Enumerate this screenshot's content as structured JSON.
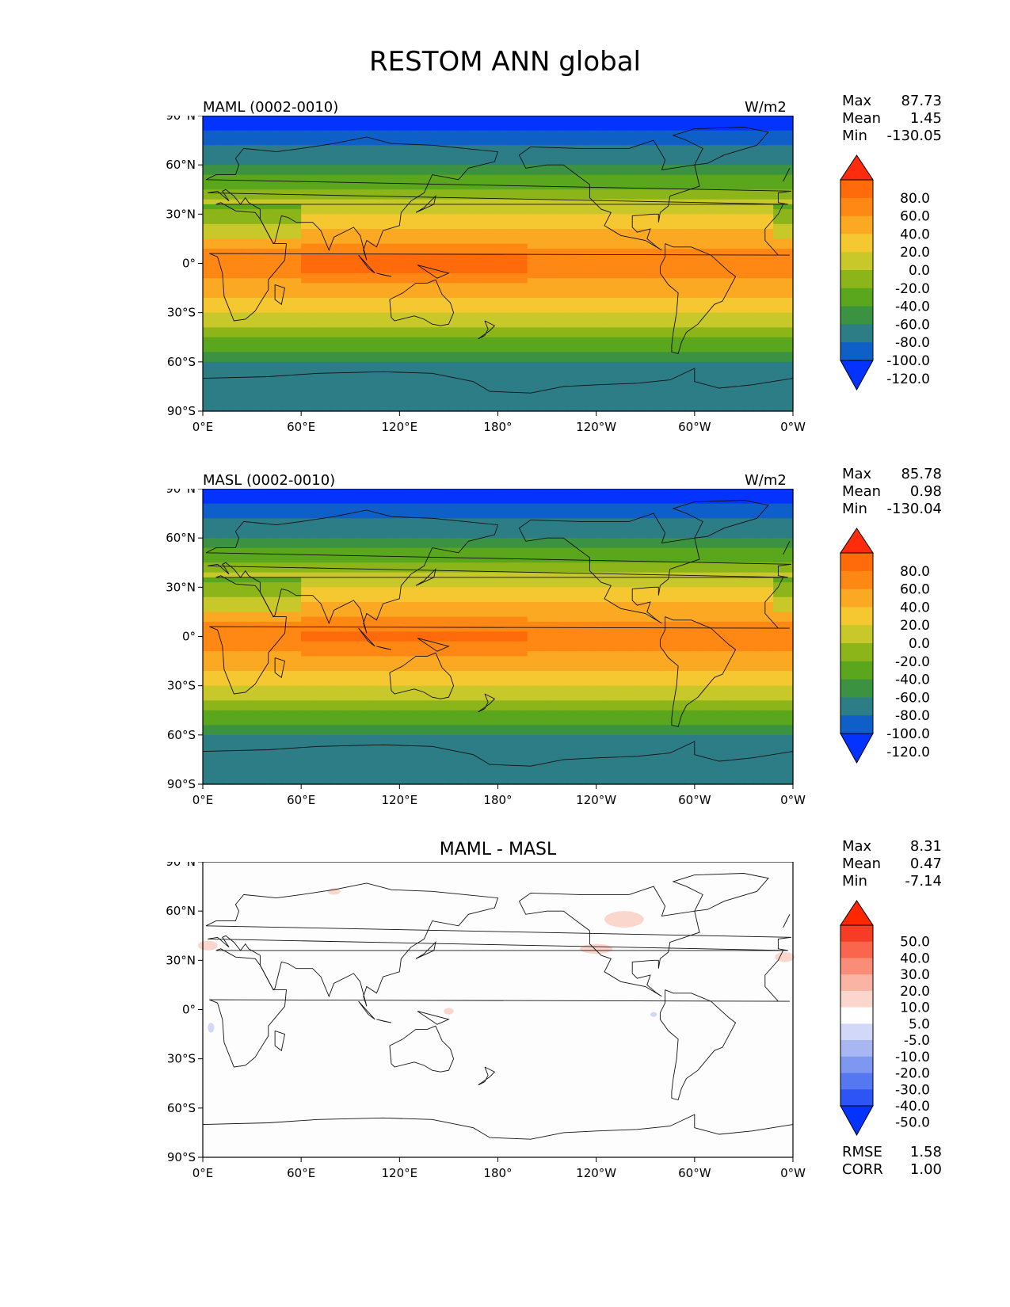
{
  "title": "RESTOM ANN global",
  "chart_data": [
    {
      "type": "heatmap",
      "subtitle_left": "MAML (0002-0010)",
      "units": "W/m2",
      "x_ticks": [
        "0°E",
        "60°E",
        "120°E",
        "180°",
        "120°W",
        "60°W",
        "0°W"
      ],
      "y_ticks": [
        "90°N",
        "60°N",
        "30°N",
        "0°",
        "30°S",
        "60°S",
        "90°S"
      ],
      "xlim": [
        0,
        360
      ],
      "ylim": [
        -90,
        90
      ],
      "stats": [
        {
          "label": "Max",
          "value": "87.73"
        },
        {
          "label": "Mean",
          "value": "1.45"
        },
        {
          "label": "Min",
          "value": "-130.05"
        }
      ],
      "colorbar": {
        "levels": [
          -120,
          -100,
          -80,
          -60,
          -40,
          -20,
          0,
          20,
          40,
          60,
          80
        ],
        "labels": [
          "80.0",
          "60.0",
          "40.0",
          "20.0",
          "0.0",
          "-20.0",
          "-40.0",
          "-60.0",
          "-80.0",
          "-100.0",
          "-120.0"
        ],
        "colors": [
          "#0433ff",
          "#0f5fc8",
          "#2c7d86",
          "#3b9342",
          "#5aa61c",
          "#8cb51a",
          "#c8c82a",
          "#f5c831",
          "#fba922",
          "#ff8714",
          "#ff6a0b",
          "#fe2b0d"
        ]
      }
    },
    {
      "type": "heatmap",
      "subtitle_left": "MASL (0002-0010)",
      "units": "W/m2",
      "x_ticks": [
        "0°E",
        "60°E",
        "120°E",
        "180°",
        "120°W",
        "60°W",
        "0°W"
      ],
      "y_ticks": [
        "90°N",
        "60°N",
        "30°N",
        "0°",
        "30°S",
        "60°S",
        "90°S"
      ],
      "xlim": [
        0,
        360
      ],
      "ylim": [
        -90,
        90
      ],
      "stats": [
        {
          "label": "Max",
          "value": "85.78"
        },
        {
          "label": "Mean",
          "value": "0.98"
        },
        {
          "label": "Min",
          "value": "-130.04"
        }
      ],
      "colorbar": {
        "levels": [
          -120,
          -100,
          -80,
          -60,
          -40,
          -20,
          0,
          20,
          40,
          60,
          80
        ],
        "labels": [
          "80.0",
          "60.0",
          "40.0",
          "20.0",
          "0.0",
          "-20.0",
          "-40.0",
          "-60.0",
          "-80.0",
          "-100.0",
          "-120.0"
        ],
        "colors": [
          "#0433ff",
          "#0f5fc8",
          "#2c7d86",
          "#3b9342",
          "#5aa61c",
          "#8cb51a",
          "#c8c82a",
          "#f5c831",
          "#fba922",
          "#ff8714",
          "#ff6a0b",
          "#fe2b0d"
        ]
      }
    },
    {
      "type": "heatmap",
      "title": "MAML - MASL",
      "x_ticks": [
        "0°E",
        "60°E",
        "120°E",
        "180°",
        "120°W",
        "60°W",
        "0°W"
      ],
      "y_ticks": [
        "90°N",
        "60°N",
        "30°N",
        "0°",
        "30°S",
        "60°S",
        "90°S"
      ],
      "xlim": [
        0,
        360
      ],
      "ylim": [
        -90,
        90
      ],
      "stats": [
        {
          "label": "Max",
          "value": "8.31"
        },
        {
          "label": "Mean",
          "value": "0.47"
        },
        {
          "label": "Min",
          "value": "-7.14"
        }
      ],
      "extra_stats": [
        {
          "label": "RMSE",
          "value": "1.58"
        },
        {
          "label": "CORR",
          "value": "1.00"
        }
      ],
      "colorbar": {
        "levels": [
          -50,
          -40,
          -30,
          -20,
          -10,
          -5,
          5,
          10,
          20,
          30,
          40,
          50
        ],
        "labels": [
          "50.0",
          "40.0",
          "30.0",
          "20.0",
          "10.0",
          "5.0",
          "-5.0",
          "-10.0",
          "-20.0",
          "-30.0",
          "-40.0",
          "-50.0"
        ],
        "colors": [
          "#0433ff",
          "#2d55f5",
          "#5578f0",
          "#7e97f0",
          "#a8b7f3",
          "#d2d9f8",
          "#ffffff",
          "#fbd6cd",
          "#fab4a3",
          "#f98d78",
          "#f9664d",
          "#f63c25",
          "#ff2600"
        ]
      }
    }
  ]
}
